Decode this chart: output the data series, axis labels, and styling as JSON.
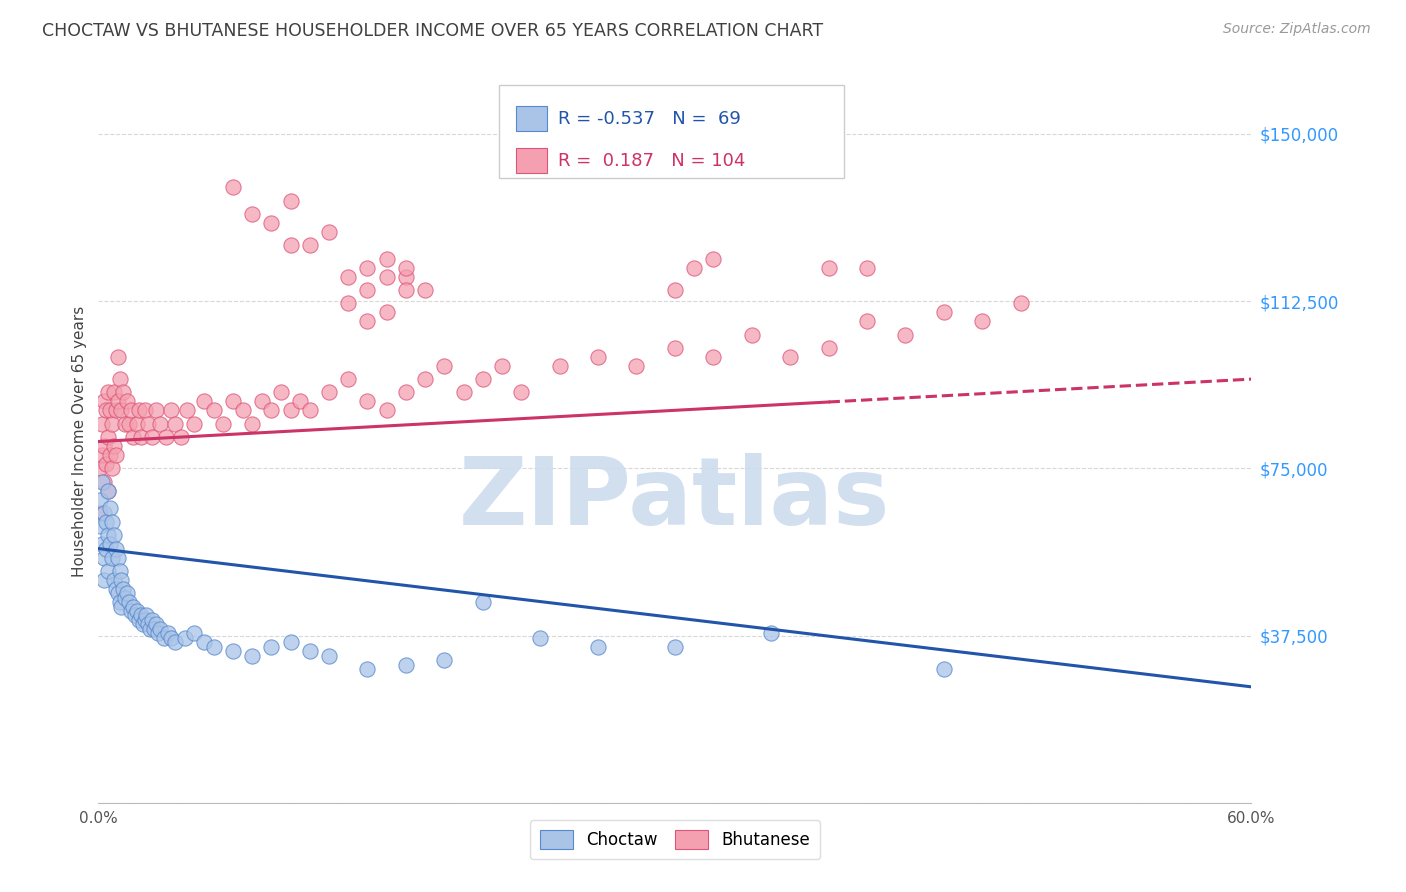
{
  "title": "CHOCTAW VS BHUTANESE HOUSEHOLDER INCOME OVER 65 YEARS CORRELATION CHART",
  "source": "Source: ZipAtlas.com",
  "ylabel": "Householder Income Over 65 years",
  "xlim": [
    0.0,
    0.6
  ],
  "ylim": [
    0,
    162000
  ],
  "yticks": [
    0,
    37500,
    75000,
    112500,
    150000
  ],
  "ytick_labels": [
    "",
    "$37,500",
    "$75,000",
    "$112,500",
    "$150,000"
  ],
  "xtick_positions": [
    0.0,
    0.1,
    0.2,
    0.3,
    0.4,
    0.5,
    0.6
  ],
  "xtick_labels": [
    "0.0%",
    "",
    "",
    "",
    "",
    "",
    "60.0%"
  ],
  "background_color": "#ffffff",
  "grid_color": "#d8d8d8",
  "title_color": "#404040",
  "source_color": "#999999",
  "choctaw_color": "#aac4e8",
  "bhutanese_color": "#f4a0b0",
  "choctaw_edge_color": "#5588cc",
  "bhutanese_edge_color": "#dd5577",
  "choctaw_line_color": "#2255aa",
  "bhutanese_line_color": "#cc3366",
  "legend_r_choctaw": "-0.537",
  "legend_n_choctaw": "69",
  "legend_r_bhutanese": "0.187",
  "legend_n_bhutanese": "104",
  "watermark_text": "ZIPatlas",
  "watermark_color": "#ccdcee",
  "choctaw_trend": [
    0.0,
    0.6,
    57000,
    26000
  ],
  "bhutanese_trend": [
    0.0,
    0.6,
    81000,
    95000
  ],
  "bhutanese_trend_solid_end": 0.38,
  "choctaw_scatter_x": [
    0.001,
    0.001,
    0.002,
    0.002,
    0.003,
    0.003,
    0.003,
    0.004,
    0.004,
    0.005,
    0.005,
    0.005,
    0.006,
    0.006,
    0.007,
    0.007,
    0.008,
    0.008,
    0.009,
    0.009,
    0.01,
    0.01,
    0.011,
    0.011,
    0.012,
    0.012,
    0.013,
    0.014,
    0.015,
    0.016,
    0.017,
    0.018,
    0.019,
    0.02,
    0.021,
    0.022,
    0.023,
    0.024,
    0.025,
    0.026,
    0.027,
    0.028,
    0.029,
    0.03,
    0.031,
    0.032,
    0.034,
    0.036,
    0.038,
    0.04,
    0.045,
    0.05,
    0.055,
    0.06,
    0.07,
    0.08,
    0.09,
    0.1,
    0.11,
    0.12,
    0.14,
    0.16,
    0.18,
    0.2,
    0.23,
    0.26,
    0.3,
    0.35,
    0.44
  ],
  "choctaw_scatter_y": [
    68000,
    62000,
    72000,
    58000,
    65000,
    55000,
    50000,
    63000,
    57000,
    70000,
    60000,
    52000,
    66000,
    58000,
    63000,
    55000,
    60000,
    50000,
    57000,
    48000,
    55000,
    47000,
    52000,
    45000,
    50000,
    44000,
    48000,
    46000,
    47000,
    45000,
    43000,
    44000,
    42000,
    43000,
    41000,
    42000,
    40000,
    41000,
    42000,
    40000,
    39000,
    41000,
    39000,
    40000,
    38000,
    39000,
    37000,
    38000,
    37000,
    36000,
    37000,
    38000,
    36000,
    35000,
    34000,
    33000,
    35000,
    36000,
    34000,
    33000,
    30000,
    31000,
    32000,
    45000,
    37000,
    35000,
    35000,
    38000,
    30000
  ],
  "bhutanese_scatter_x": [
    0.001,
    0.001,
    0.002,
    0.002,
    0.003,
    0.003,
    0.003,
    0.004,
    0.004,
    0.005,
    0.005,
    0.005,
    0.006,
    0.006,
    0.007,
    0.007,
    0.008,
    0.008,
    0.009,
    0.009,
    0.01,
    0.01,
    0.011,
    0.012,
    0.013,
    0.014,
    0.015,
    0.016,
    0.017,
    0.018,
    0.02,
    0.021,
    0.022,
    0.024,
    0.026,
    0.028,
    0.03,
    0.032,
    0.035,
    0.038,
    0.04,
    0.043,
    0.046,
    0.05,
    0.055,
    0.06,
    0.065,
    0.07,
    0.075,
    0.08,
    0.085,
    0.09,
    0.095,
    0.1,
    0.105,
    0.11,
    0.12,
    0.13,
    0.14,
    0.15,
    0.16,
    0.17,
    0.18,
    0.19,
    0.2,
    0.21,
    0.22,
    0.24,
    0.26,
    0.28,
    0.3,
    0.32,
    0.34,
    0.36,
    0.38,
    0.4,
    0.42,
    0.44,
    0.46,
    0.48,
    0.38,
    0.4,
    0.13,
    0.14,
    0.15,
    0.16,
    0.17,
    0.3,
    0.31,
    0.32,
    0.14,
    0.15,
    0.16,
    0.07,
    0.08,
    0.09,
    0.1,
    0.1,
    0.11,
    0.12,
    0.13,
    0.14,
    0.15,
    0.16
  ],
  "bhutanese_scatter_y": [
    75000,
    65000,
    85000,
    78000,
    90000,
    80000,
    72000,
    88000,
    76000,
    92000,
    82000,
    70000,
    88000,
    78000,
    85000,
    75000,
    92000,
    80000,
    88000,
    78000,
    100000,
    90000,
    95000,
    88000,
    92000,
    85000,
    90000,
    85000,
    88000,
    82000,
    85000,
    88000,
    82000,
    88000,
    85000,
    82000,
    88000,
    85000,
    82000,
    88000,
    85000,
    82000,
    88000,
    85000,
    90000,
    88000,
    85000,
    90000,
    88000,
    85000,
    90000,
    88000,
    92000,
    88000,
    90000,
    88000,
    92000,
    95000,
    90000,
    88000,
    92000,
    95000,
    98000,
    92000,
    95000,
    98000,
    92000,
    98000,
    100000,
    98000,
    102000,
    100000,
    105000,
    100000,
    102000,
    108000,
    105000,
    110000,
    108000,
    112000,
    120000,
    120000,
    118000,
    120000,
    122000,
    118000,
    115000,
    115000,
    120000,
    122000,
    108000,
    110000,
    115000,
    138000,
    132000,
    130000,
    125000,
    135000,
    125000,
    128000,
    112000,
    115000,
    118000,
    120000
  ]
}
